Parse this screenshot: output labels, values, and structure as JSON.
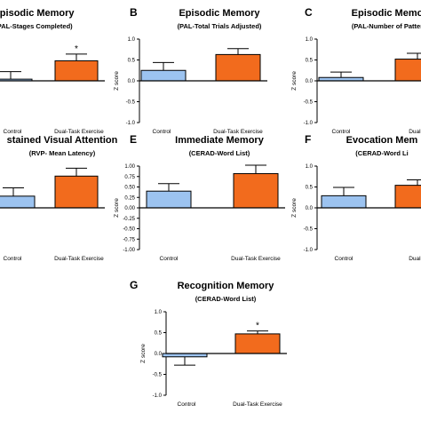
{
  "figure": {
    "colors": {
      "control": "#9cc3f0",
      "exercise": "#f26b1d",
      "axis": "#000000",
      "significance": "#000000"
    }
  },
  "chart_data": [
    {
      "panel_letter": "",
      "type": "bar",
      "title": "Episodic Memory",
      "subtitle": "(PAL-Stages Completed)",
      "ylabel": "",
      "ylim": [
        -1.0,
        1.0
      ],
      "yticks": [],
      "categories": [
        "Control",
        "Dual-Task Exercise"
      ],
      "xlabels": [
        "Control",
        "Dual-Task Exercise"
      ],
      "values": [
        0.04,
        0.48
      ],
      "errors": [
        0.18,
        0.16
      ],
      "significance": [
        "",
        "*"
      ]
    },
    {
      "panel_letter": "B",
      "type": "bar",
      "title": "Episodic Memory",
      "subtitle": "(PAL-Total Trials Adjusted)",
      "ylabel": "Z score",
      "ylim": [
        -1.0,
        1.0
      ],
      "yticks": [
        "1.0",
        "0.5",
        "0.0",
        "-0.5",
        "-1.0"
      ],
      "categories": [
        "Control",
        "Dual-Task Exercise"
      ],
      "xlabels": [
        "Control",
        "Dual-Task Exercise"
      ],
      "values": [
        0.25,
        0.63
      ],
      "errors": [
        0.19,
        0.14
      ],
      "significance": [
        "",
        ""
      ]
    },
    {
      "panel_letter": "C",
      "type": "bar",
      "title": "Episodic Memo",
      "subtitle": "(PAL-Number of Patter",
      "ylabel": "Z score",
      "ylim": [
        -1.0,
        1.0
      ],
      "yticks": [
        "1.0",
        "0.5",
        "0.0",
        "-0.5",
        "-1.0"
      ],
      "categories": [
        "Control",
        "Dual-Task Exercise"
      ],
      "xlabels": [
        "Control",
        "Dual-T"
      ],
      "values": [
        0.08,
        0.52
      ],
      "errors": [
        0.13,
        0.14
      ],
      "significance": [
        "",
        ""
      ]
    },
    {
      "panel_letter": "",
      "type": "bar",
      "title": "stained Visual Attention",
      "subtitle": "(RVP- Mean Latency)",
      "ylabel": "",
      "ylim": [
        -1.0,
        1.0
      ],
      "yticks": [],
      "categories": [
        "Control",
        "Dual-Task Exercise"
      ],
      "xlabels": [
        "Control",
        "Dual-Task Exercise"
      ],
      "values": [
        0.28,
        0.76
      ],
      "errors": [
        0.2,
        0.19
      ],
      "significance": [
        "",
        ""
      ]
    },
    {
      "panel_letter": "E",
      "type": "bar",
      "title": "Immediate Memory",
      "subtitle": "(CERAD-Word List)",
      "ylabel": "Z score",
      "ylim": [
        -1.0,
        1.0
      ],
      "yticks": [
        "1.00",
        "0.75",
        "0.50",
        "0.25",
        "0.00",
        "-0.25",
        "-0.50",
        "-0.75",
        "-1.00"
      ],
      "categories": [
        "Control",
        "Dual-Task Exercise"
      ],
      "xlabels": [
        "Control",
        "Dual-Task Exercise"
      ],
      "values": [
        0.4,
        0.82
      ],
      "errors": [
        0.18,
        0.2
      ],
      "significance": [
        "",
        ""
      ]
    },
    {
      "panel_letter": "F",
      "type": "bar",
      "title": "Evocation Mem",
      "subtitle": "(CERAD-Word Li",
      "ylabel": "Z score",
      "ylim": [
        -1.0,
        1.0
      ],
      "yticks": [
        "1.0",
        "0.5",
        "0.0",
        "-0.5",
        "-1.0"
      ],
      "categories": [
        "Control",
        "Dual-Task Exercise"
      ],
      "xlabels": [
        "Control",
        "Dual-T"
      ],
      "values": [
        0.29,
        0.54
      ],
      "errors": [
        0.2,
        0.13
      ],
      "significance": [
        "",
        ""
      ]
    },
    {
      "panel_letter": "G",
      "type": "bar",
      "title": "Recognition Memory",
      "subtitle": "(CERAD-Word List)",
      "ylabel": "Z score",
      "ylim": [
        -1.0,
        1.0
      ],
      "yticks": [
        "1.0",
        "0.5",
        "0.0",
        "-0.5",
        "-1.0"
      ],
      "categories": [
        "Control",
        "Dual-Task Exercise"
      ],
      "xlabels": [
        "Control",
        "Dual-Task Exercise"
      ],
      "values": [
        -0.08,
        0.47
      ],
      "errors": [
        0.2,
        0.07
      ],
      "significance": [
        "",
        "*"
      ]
    }
  ]
}
